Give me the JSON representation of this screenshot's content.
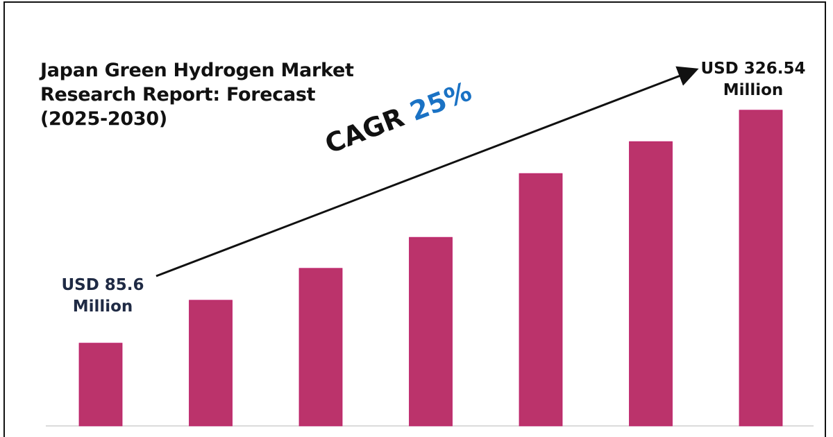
{
  "chart_data": {
    "type": "bar",
    "title": "Japan Green Hydrogen Market Research Report: Forecast (2025-2030)",
    "title_lines": [
      "Japan Green Hydrogen Market",
      "Research Report: Forecast",
      "(2025-2030)"
    ],
    "categories": [
      "",
      "",
      "",
      "",
      "",
      "",
      ""
    ],
    "values": [
      85.6,
      130,
      163,
      195,
      261,
      294,
      326.54
    ],
    "ylim": [
      0,
      340
    ],
    "grid": false,
    "bar_color": "#bb336b",
    "annotations": {
      "first": {
        "line1": "USD 85.6",
        "line2": "Million"
      },
      "last": {
        "line1": "USD 326.54",
        "line2": "Million"
      },
      "cagr_label": "CAGR",
      "cagr_value": "25%",
      "cagr_color": "#1a72c4"
    }
  }
}
